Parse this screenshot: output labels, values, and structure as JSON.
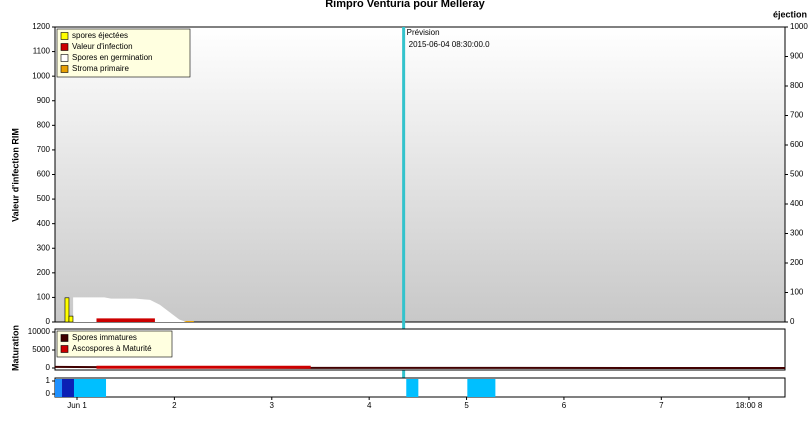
{
  "chart_data": [
    {
      "type": "combo",
      "title": "Rimpro Venturia pour Melleray",
      "ylabel": "Valeur d'infection RIM",
      "y2label": "éjection",
      "xlim": [
        0.774,
        8.27
      ],
      "ylim": [
        0,
        1200
      ],
      "yticks": [
        0,
        100,
        200,
        300,
        400,
        500,
        600,
        700,
        800,
        900,
        1000,
        1100,
        1200
      ],
      "y2lim": [
        0,
        1000
      ],
      "y2ticks": [
        0,
        100,
        200,
        300,
        400,
        500,
        600,
        700,
        800,
        900,
        1000
      ],
      "legend": "upper left",
      "annotation": {
        "x": 4.354,
        "label": "Prévision",
        "text": "2015-06-04 08:30:00.0",
        "color": "#33c3cc"
      },
      "series": [
        {
          "name": "spores éjectées",
          "type": "bar",
          "axis": "y2",
          "color": "#ffff00",
          "x": [
            0.897,
            0.938
          ],
          "values": [
            82,
            20
          ]
        },
        {
          "name": "Valeur d'infection",
          "type": "area",
          "color": "#cc0000",
          "x": [
            1.2,
            1.8
          ],
          "values": [
            15,
            15
          ]
        },
        {
          "name": "Spores en germination",
          "type": "area",
          "color": "#ffffff",
          "x": [
            0.96,
            1.28,
            1.35,
            1.6,
            1.75,
            1.85,
            1.95,
            2.05,
            2.12
          ],
          "values": [
            100,
            100,
            95,
            95,
            90,
            70,
            40,
            10,
            0
          ]
        },
        {
          "name": "Stroma primaire",
          "type": "area",
          "color": "#e8a000",
          "x": [
            2.1,
            2.2
          ],
          "values": [
            4,
            4
          ]
        }
      ]
    },
    {
      "type": "line",
      "ylabel": "Maturation",
      "xlim": [
        0.774,
        8.27
      ],
      "ylim": [
        0,
        10000
      ],
      "yticks": [
        0,
        5000,
        10000
      ],
      "legend": "upper left",
      "series": [
        {
          "name": "Spores immatures",
          "color": "#400000",
          "x": [
            0.774,
            1.2,
            3.4,
            8.27
          ],
          "values": [
            300,
            250,
            50,
            0
          ]
        },
        {
          "name": "Ascospores à Maturité",
          "color": "#cc0000",
          "x": [
            1.2,
            3.4
          ],
          "values": [
            200,
            200
          ]
        }
      ]
    },
    {
      "type": "span",
      "xlim": [
        0.774,
        8.27
      ],
      "ylim": [
        0,
        1
      ],
      "yticks": [
        0,
        1
      ],
      "xticks": [
        {
          "value": 1,
          "label": "Jun 1"
        },
        2,
        3,
        4,
        5,
        6,
        7,
        {
          "value": 7.9,
          "label": "18:00 8"
        }
      ],
      "series": [
        {
          "color": "#1e90ff",
          "x": [
            0.774
          ],
          "x_end": [
            0.846
          ],
          "values": [
            1
          ]
        },
        {
          "color": "#0b1fb5",
          "x": [
            0.846
          ],
          "x_end": [
            0.969
          ],
          "values": [
            1
          ]
        },
        {
          "color": "#00bfff",
          "x": [
            0.969,
            4.381,
            5.008
          ],
          "x_end": [
            1.298,
            4.505,
            5.296
          ],
          "values": [
            1,
            1,
            1
          ]
        }
      ]
    }
  ]
}
